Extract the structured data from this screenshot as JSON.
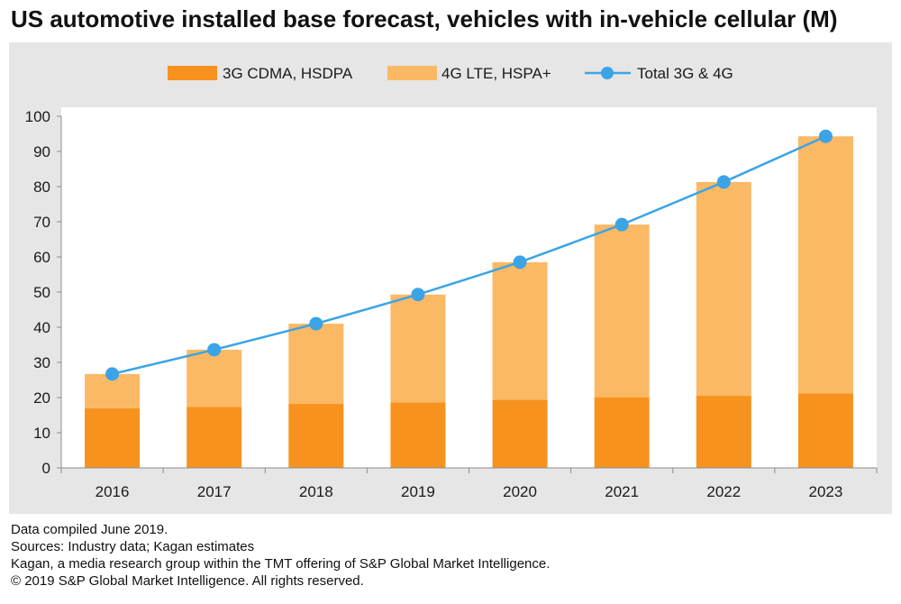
{
  "title": "US automotive installed base forecast, vehicles with in-vehicle cellular (M)",
  "colors": {
    "series_3g": "#f7921e",
    "series_4g": "#fbb965",
    "total_line": "#3ba4e6",
    "panel_bg": "#e6e6e6",
    "plot_bg": "#ffffff"
  },
  "chart_data": {
    "type": "bar",
    "stacked": true,
    "categories": [
      "2016",
      "2017",
      "2018",
      "2019",
      "2020",
      "2021",
      "2022",
      "2023"
    ],
    "series": [
      {
        "name": "3G CDMA, HSDPA",
        "kind": "bar",
        "values": [
          17,
          17.3,
          18.2,
          18.6,
          19.4,
          20.1,
          20.5,
          21.2
        ]
      },
      {
        "name": "4G LTE, HSPA+",
        "kind": "bar",
        "values": [
          9.7,
          16.3,
          22.8,
          30.7,
          39.1,
          49.1,
          60.8,
          73.1
        ]
      },
      {
        "name": "Total 3G & 4G",
        "kind": "line",
        "values": [
          26.7,
          33.6,
          41.0,
          49.3,
          58.5,
          69.2,
          81.3,
          94.3
        ]
      }
    ],
    "ylim": [
      0,
      100
    ],
    "yticks": [
      "0",
      "10",
      "20",
      "30",
      "40",
      "50",
      "60",
      "70",
      "80",
      "90",
      "100"
    ],
    "xlabel": "",
    "ylabel": "",
    "legend_position": "top-center",
    "grid": false
  },
  "footer": {
    "line1": "Data compiled June 2019.",
    "line2": "Sources: Industry data; Kagan estimates",
    "line3": "Kagan, a media research group within the TMT offering of S&P Global Market Intelligence.",
    "line4": "© 2019 S&P Global Market Intelligence. All rights reserved."
  }
}
